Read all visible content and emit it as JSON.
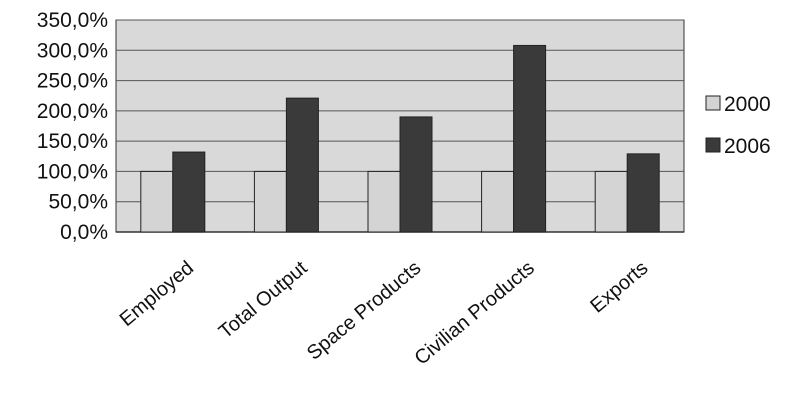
{
  "chart_data": {
    "type": "bar",
    "categories": [
      "Employed",
      "Total Output",
      "Space Products",
      "Civilian Products",
      "Exports"
    ],
    "series": [
      {
        "name": "2000",
        "values": [
          100,
          100,
          100,
          100,
          100
        ]
      },
      {
        "name": "2006",
        "values": [
          132,
          221,
          190,
          308,
          129
        ]
      }
    ],
    "ylim": [
      0,
      350
    ],
    "yticks": [
      0,
      50,
      100,
      150,
      200,
      250,
      300,
      350
    ],
    "ytick_labels": [
      "0,0%",
      "50,0%",
      "100,0%",
      "150,0%",
      "200,0%",
      "250,0%",
      "300,0%",
      "350,0%"
    ],
    "grid": true,
    "legend_position": "right",
    "colors": {
      "plot_background": "#d9d9d9",
      "series_2000": "#d4d4d4",
      "series_2006": "#3a3a3a",
      "gridline": "#555555",
      "axis": "#333333"
    }
  }
}
